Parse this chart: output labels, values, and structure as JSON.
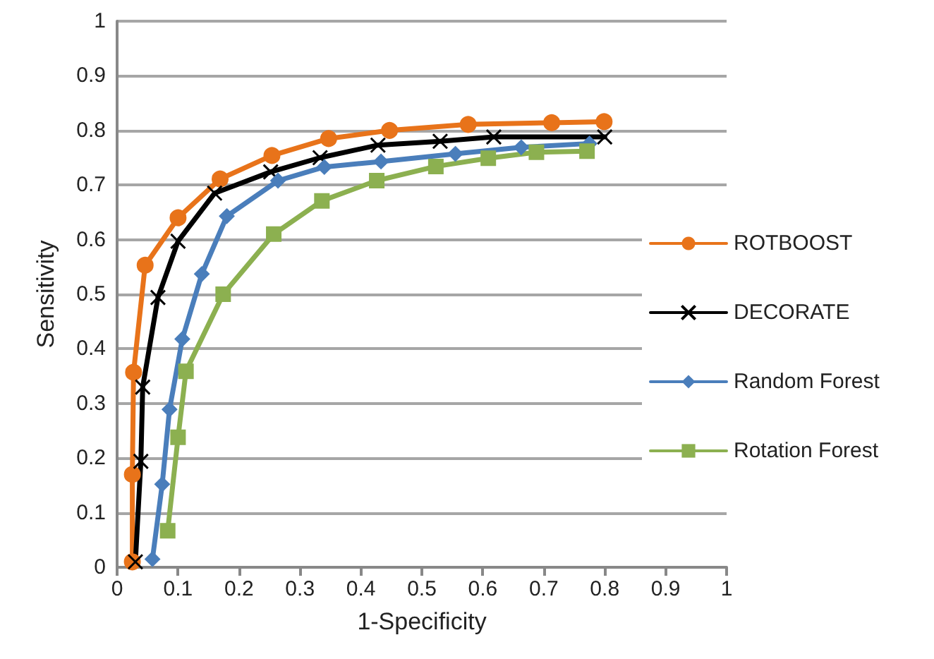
{
  "chart_data": {
    "type": "line",
    "xlabel": "1-Specificity",
    "ylabel": "Sensitivity",
    "xlim": [
      0,
      1
    ],
    "xticks": [
      0,
      0.1,
      0.2,
      0.3,
      0.4,
      0.5,
      0.6,
      0.7,
      0.8,
      0.9,
      1
    ],
    "ylim": [
      0,
      1
    ],
    "yticks": [
      0,
      0.1,
      0.2,
      0.3,
      0.4,
      0.5,
      0.6,
      0.7,
      0.8,
      0.9,
      1
    ],
    "grid": "y",
    "legend": "right",
    "series": [
      {
        "name": "ROTBOOST",
        "color": "#e8731a",
        "marker": "circle",
        "x": [
          0.025,
          0.025,
          0.027,
          0.046,
          0.1,
          0.169,
          0.254,
          0.347,
          0.447,
          0.576,
          0.713,
          0.799
        ],
        "values": [
          0.01,
          0.17,
          0.357,
          0.553,
          0.64,
          0.711,
          0.754,
          0.785,
          0.8,
          0.811,
          0.814,
          0.816
        ]
      },
      {
        "name": "DECORATE",
        "color": "#000000",
        "marker": "cross",
        "x": [
          0.03,
          0.039,
          0.042,
          0.067,
          0.1,
          0.16,
          0.252,
          0.333,
          0.428,
          0.53,
          0.618,
          0.8
        ],
        "values": [
          0.01,
          0.194,
          0.33,
          0.494,
          0.597,
          0.685,
          0.724,
          0.75,
          0.773,
          0.78,
          0.788,
          0.788
        ]
      },
      {
        "name": "Random Forest",
        "color": "#4a7ebb",
        "marker": "diamond",
        "x": [
          0.058,
          0.074,
          0.086,
          0.107,
          0.139,
          0.18,
          0.264,
          0.34,
          0.433,
          0.555,
          0.663,
          0.775
        ],
        "values": [
          0.015,
          0.152,
          0.289,
          0.418,
          0.537,
          0.643,
          0.708,
          0.733,
          0.743,
          0.757,
          0.769,
          0.776
        ]
      },
      {
        "name": "Rotation Forest",
        "color": "#8cb050",
        "marker": "square",
        "x": [
          0.083,
          0.1,
          0.113,
          0.174,
          0.257,
          0.336,
          0.426,
          0.523,
          0.609,
          0.688,
          0.771
        ],
        "values": [
          0.067,
          0.238,
          0.359,
          0.5,
          0.61,
          0.671,
          0.708,
          0.734,
          0.749,
          0.76,
          0.762
        ]
      }
    ]
  }
}
